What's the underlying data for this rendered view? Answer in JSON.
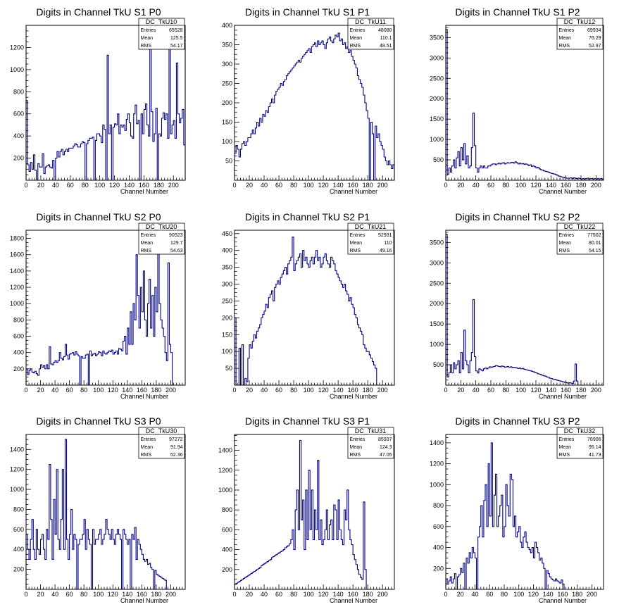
{
  "colors": {
    "line": "#000080",
    "frame": "#000000",
    "background": "#ffffff"
  },
  "chart_data": [
    {
      "type": "histogram",
      "title": "Digits in Channel TkU S1 P0",
      "xlabel": "Channel Number",
      "xlim": [
        0,
        216
      ],
      "ylim": [
        0,
        1400
      ],
      "xticks": [
        0,
        20,
        40,
        60,
        80,
        100,
        120,
        140,
        160,
        180,
        200
      ],
      "yticks": [
        200,
        400,
        600,
        800,
        1000,
        1200
      ],
      "stats": {
        "name": "DC_TkU10",
        "Entries": "65528",
        "Mean": "125.5",
        "RMS": "54.17"
      },
      "bin_width": 2,
      "values": [
        720,
        140,
        80,
        160,
        100,
        230,
        90,
        0,
        150,
        120,
        120,
        240,
        60,
        120,
        130,
        140,
        120,
        110,
        180,
        0,
        200,
        260,
        210,
        260,
        280,
        230,
        260,
        280,
        260,
        290,
        290,
        290,
        310,
        330,
        320,
        300,
        300,
        330,
        350,
        340,
        0,
        330,
        360,
        380,
        380,
        390,
        0,
        360,
        420,
        420,
        400,
        340,
        500,
        460,
        0,
        1130,
        420,
        500,
        0,
        480,
        510,
        500,
        600,
        420,
        500,
        480,
        500,
        450,
        550,
        600,
        520,
        400,
        380,
        600,
        680,
        510,
        540,
        0,
        600,
        420,
        640,
        690,
        500,
        400,
        1280,
        620,
        350,
        420,
        650,
        0,
        420,
        400,
        560,
        610,
        550,
        600,
        380,
        1220,
        420,
        500,
        540,
        380,
        1060,
        600,
        520,
        560,
        640,
        320,
        1220
      ]
    },
    {
      "type": "histogram",
      "title": "Digits in Channel TkU S1 P1",
      "xlabel": "Channel Number",
      "xlim": [
        0,
        216
      ],
      "ylim": [
        0,
        400
      ],
      "xticks": [
        0,
        20,
        40,
        60,
        80,
        100,
        120,
        140,
        160,
        180,
        200
      ],
      "yticks": [
        50,
        100,
        150,
        200,
        250,
        300,
        350,
        400
      ],
      "stats": {
        "name": "DC_TkU11",
        "Entries": "48080",
        "Mean": "110.1",
        "RMS": "48.51"
      },
      "bin_width": 2,
      "values": [
        70,
        90,
        80,
        60,
        80,
        95,
        100,
        90,
        100,
        110,
        110,
        120,
        130,
        120,
        135,
        150,
        140,
        160,
        150,
        170,
        165,
        180,
        175,
        190,
        200,
        210,
        200,
        220,
        230,
        235,
        240,
        250,
        245,
        255,
        260,
        270,
        275,
        280,
        285,
        290,
        295,
        300,
        305,
        310,
        305,
        315,
        320,
        325,
        330,
        335,
        340,
        330,
        345,
        350,
        355,
        345,
        360,
        350,
        355,
        360,
        350,
        340,
        355,
        365,
        370,
        360,
        355,
        365,
        375,
        370,
        380,
        360,
        365,
        350,
        355,
        340,
        345,
        330,
        335,
        320,
        310,
        300,
        290,
        270,
        260,
        250,
        240,
        220,
        200,
        180,
        160,
        0,
        150,
        120,
        0,
        140,
        110,
        120,
        100,
        90,
        80,
        60,
        50,
        40,
        50,
        40,
        30,
        40,
        50
      ]
    },
    {
      "type": "histogram",
      "title": "Digits in Channel TkU S1 P2",
      "xlabel": "Channel Number",
      "xlim": [
        0,
        210
      ],
      "ylim": [
        0,
        3800
      ],
      "xticks": [
        0,
        20,
        40,
        60,
        80,
        100,
        120,
        140,
        160,
        180,
        200
      ],
      "yticks": [
        500,
        1000,
        1500,
        2000,
        2500,
        3000,
        3500
      ],
      "stats": {
        "name": "DC_TkU12",
        "Entries": "69934",
        "Mean": "76.29",
        "RMS": "52.97"
      },
      "bin_width": 2,
      "values": [
        3700,
        150,
        300,
        200,
        350,
        500,
        300,
        550,
        700,
        350,
        800,
        500,
        900,
        400,
        600,
        300,
        350,
        800,
        1650,
        850,
        300,
        200,
        300,
        350,
        300,
        350,
        300,
        300,
        350,
        350,
        380,
        400,
        400,
        380,
        400,
        420,
        400,
        420,
        430,
        400,
        420,
        430,
        420,
        430,
        440,
        420,
        450,
        430,
        400,
        420,
        400,
        410,
        390,
        400,
        380,
        360,
        380,
        340,
        350,
        330,
        300,
        320,
        280,
        260,
        250,
        230,
        220,
        210,
        200,
        180,
        170,
        160,
        150,
        140,
        120,
        100,
        90,
        80,
        70,
        60,
        50,
        50,
        50,
        60,
        40,
        60,
        50,
        40,
        50,
        40,
        30,
        40,
        30,
        40,
        50,
        30,
        40,
        40,
        30,
        40,
        30,
        40,
        30,
        40,
        30
      ]
    },
    {
      "type": "histogram",
      "title": "Digits in Channel TkU S2 P0",
      "xlabel": "Channel Number",
      "xlim": [
        0,
        220
      ],
      "ylim": [
        0,
        1900
      ],
      "xticks": [
        0,
        20,
        40,
        60,
        80,
        100,
        120,
        140,
        160,
        180,
        200
      ],
      "yticks": [
        200,
        400,
        600,
        800,
        1000,
        1200,
        1400,
        1600,
        1800
      ],
      "stats": {
        "name": "DC_TkU20",
        "Entries": "90523",
        "Mean": "129.7",
        "RMS": "54.63"
      },
      "bin_width": 2,
      "values": [
        200,
        130,
        180,
        200,
        160,
        150,
        170,
        140,
        120,
        200,
        250,
        220,
        240,
        200,
        250,
        200,
        470,
        260,
        250,
        280,
        300,
        280,
        300,
        400,
        330,
        310,
        350,
        500,
        370,
        320,
        380,
        390,
        400,
        370,
        410,
        380,
        360,
        0,
        350,
        330,
        330,
        370,
        380,
        0,
        420,
        360,
        380,
        390,
        360,
        380,
        410,
        400,
        360,
        420,
        390,
        380,
        400,
        420,
        410,
        430,
        380,
        400,
        420,
        380,
        450,
        440,
        420,
        540,
        600,
        380,
        700,
        500,
        900,
        500,
        1000,
        800,
        1600,
        1100,
        700,
        1200,
        900,
        1400,
        800,
        600,
        1000,
        1300,
        700,
        1100,
        600,
        1200,
        900,
        1750,
        1000,
        800,
        700,
        600,
        400,
        300,
        1500,
        500,
        400
      ]
    },
    {
      "type": "histogram",
      "title": "Digits in Channel TkU S2 P1",
      "xlabel": "Channel Number",
      "xlim": [
        0,
        216
      ],
      "ylim": [
        0,
        460
      ],
      "xticks": [
        0,
        20,
        40,
        60,
        80,
        100,
        120,
        140,
        160,
        180,
        200
      ],
      "yticks": [
        50,
        100,
        150,
        200,
        250,
        300,
        350,
        400,
        450
      ],
      "stats": {
        "name": "DC_TkU21",
        "Entries": "52931",
        "Mean": "110",
        "RMS": "49.16"
      },
      "bin_width": 2,
      "values": [
        200,
        0,
        0,
        110,
        0,
        120,
        0,
        20,
        10,
        80,
        120,
        110,
        130,
        150,
        140,
        160,
        170,
        180,
        200,
        210,
        220,
        240,
        230,
        260,
        270,
        280,
        250,
        290,
        300,
        310,
        300,
        320,
        330,
        340,
        350,
        330,
        360,
        370,
        380,
        440,
        340,
        360,
        370,
        380,
        390,
        350,
        400,
        370,
        380,
        360,
        350,
        370,
        380,
        360,
        380,
        400,
        370,
        380,
        350,
        360,
        380,
        390,
        370,
        360,
        350,
        380,
        370,
        360,
        340,
        330,
        320,
        310,
        300,
        290,
        300,
        280,
        270,
        250,
        260,
        240,
        230,
        210,
        200,
        180,
        170,
        160,
        150,
        120,
        110,
        100,
        100,
        90,
        80,
        70,
        60,
        50
      ]
    },
    {
      "type": "histogram",
      "title": "Digits in Channel TkU S2 P2",
      "xlabel": "Channel Number",
      "xlim": [
        0,
        210
      ],
      "ylim": [
        0,
        3800
      ],
      "xticks": [
        0,
        20,
        40,
        60,
        80,
        100,
        120,
        140,
        160,
        180,
        200
      ],
      "yticks": [
        500,
        1000,
        1500,
        2000,
        2500,
        3000,
        3500
      ],
      "stats": {
        "name": "DC_TkU22",
        "Entries": "77502",
        "Mean": "80.01",
        "RMS": "54.15"
      },
      "bin_width": 2,
      "values": [
        3700,
        200,
        300,
        500,
        300,
        550,
        400,
        500,
        600,
        300,
        800,
        400,
        1350,
        600,
        500,
        300,
        600,
        800,
        2100,
        700,
        350,
        300,
        400,
        380,
        350,
        400,
        420,
        400,
        420,
        450,
        440,
        450,
        460,
        480,
        470,
        460,
        450,
        470,
        460,
        440,
        450,
        460,
        440,
        450,
        430,
        440,
        430,
        420,
        410,
        420,
        400,
        410,
        390,
        380,
        370,
        360,
        350,
        340,
        330,
        310,
        300,
        280,
        270,
        260,
        240,
        230,
        220,
        200,
        190,
        170,
        160,
        150,
        140,
        130,
        120,
        110,
        100,
        90,
        80,
        70,
        60,
        50,
        60,
        50,
        40,
        100,
        520,
        100
      ]
    },
    {
      "type": "histogram",
      "title": "Digits in Channel TkU S3 P0",
      "xlabel": "Channel Number",
      "xlim": [
        0,
        220
      ],
      "ylim": [
        0,
        1550
      ],
      "xticks": [
        0,
        20,
        40,
        60,
        80,
        100,
        120,
        140,
        160,
        180,
        200
      ],
      "yticks": [
        200,
        400,
        600,
        800,
        1000,
        1200,
        1400
      ],
      "stats": {
        "name": "DC_TkU30",
        "Entries": "97272",
        "Mean": "91.94",
        "RMS": "52.36"
      },
      "bin_width": 2,
      "values": [
        550,
        400,
        300,
        500,
        700,
        400,
        300,
        600,
        400,
        350,
        500,
        550,
        400,
        300,
        600,
        500,
        1250,
        700,
        300,
        900,
        550,
        1200,
        500,
        400,
        700,
        1200,
        400,
        1500,
        500,
        300,
        550,
        800,
        400,
        550,
        500,
        0,
        450,
        500,
        500,
        550,
        700,
        400,
        600,
        500,
        450,
        0,
        600,
        450,
        500,
        500,
        550,
        600,
        450,
        500,
        550,
        700,
        600,
        550,
        500,
        600,
        500,
        450,
        550,
        600,
        550,
        500,
        0,
        600,
        550,
        500,
        450,
        500,
        0,
        550,
        500,
        620,
        300,
        500,
        450,
        400,
        350,
        300,
        280,
        300,
        250,
        260,
        220,
        200,
        0,
        190,
        150,
        140,
        130,
        120,
        110,
        100,
        90
      ]
    },
    {
      "type": "histogram",
      "title": "Digits in Channel TkU S3 P1",
      "xlabel": "Channel Number",
      "xlim": [
        0,
        216
      ],
      "ylim": [
        0,
        1560
      ],
      "xticks": [
        0,
        20,
        40,
        60,
        80,
        100,
        120,
        140,
        160,
        180,
        200
      ],
      "yticks": [
        200,
        400,
        600,
        800,
        1000,
        1200,
        1400
      ],
      "stats": {
        "name": "DC_TkU31",
        "Entries": "85937",
        "Mean": "124.3",
        "RMS": "47.05"
      },
      "bin_width": 2,
      "values": [
        50,
        60,
        70,
        80,
        90,
        100,
        110,
        120,
        130,
        140,
        150,
        160,
        170,
        180,
        190,
        200,
        210,
        220,
        240,
        250,
        260,
        270,
        280,
        290,
        300,
        320,
        330,
        340,
        350,
        360,
        370,
        380,
        390,
        400,
        420,
        430,
        440,
        460,
        500,
        600,
        400,
        800,
        1000,
        600,
        1500,
        700,
        900,
        400,
        1000,
        500,
        1200,
        600,
        1000,
        500,
        800,
        600,
        1300,
        500,
        700,
        450,
        500,
        600,
        800,
        500,
        650,
        700,
        500,
        850,
        800,
        500,
        900,
        600,
        500,
        450,
        800,
        700,
        1000,
        600,
        500,
        450,
        350,
        300,
        250,
        200,
        150,
        120,
        100,
        880,
        200
      ]
    },
    {
      "type": "histogram",
      "title": "Digits in Channel TkU S3 P2",
      "xlabel": "Channel Number",
      "xlim": [
        0,
        216
      ],
      "ylim": [
        0,
        1480
      ],
      "xticks": [
        0,
        20,
        40,
        60,
        80,
        100,
        120,
        140,
        160,
        180,
        200
      ],
      "yticks": [
        200,
        400,
        600,
        800,
        1000,
        1200,
        1400
      ],
      "stats": {
        "name": "DC_TkU32",
        "Entries": "76906",
        "Mean": "95.14",
        "RMS": "41.73"
      },
      "bin_width": 2,
      "values": [
        100,
        50,
        80,
        120,
        60,
        100,
        150,
        0,
        120,
        140,
        200,
        160,
        250,
        0,
        300,
        250,
        350,
        300,
        400,
        350,
        300,
        0,
        500,
        600,
        800,
        500,
        850,
        1000,
        600,
        1200,
        700,
        1400,
        600,
        900,
        1100,
        600,
        700,
        800,
        900,
        500,
        600,
        1000,
        800,
        700,
        1100,
        1050,
        600,
        700,
        500,
        550,
        600,
        450,
        400,
        500,
        550,
        450,
        400,
        380,
        350,
        400,
        300,
        450,
        400,
        350,
        280,
        300,
        250,
        200,
        0,
        180,
        150,
        120,
        100,
        90,
        80,
        100,
        80,
        70,
        60,
        90,
        50
      ]
    }
  ]
}
